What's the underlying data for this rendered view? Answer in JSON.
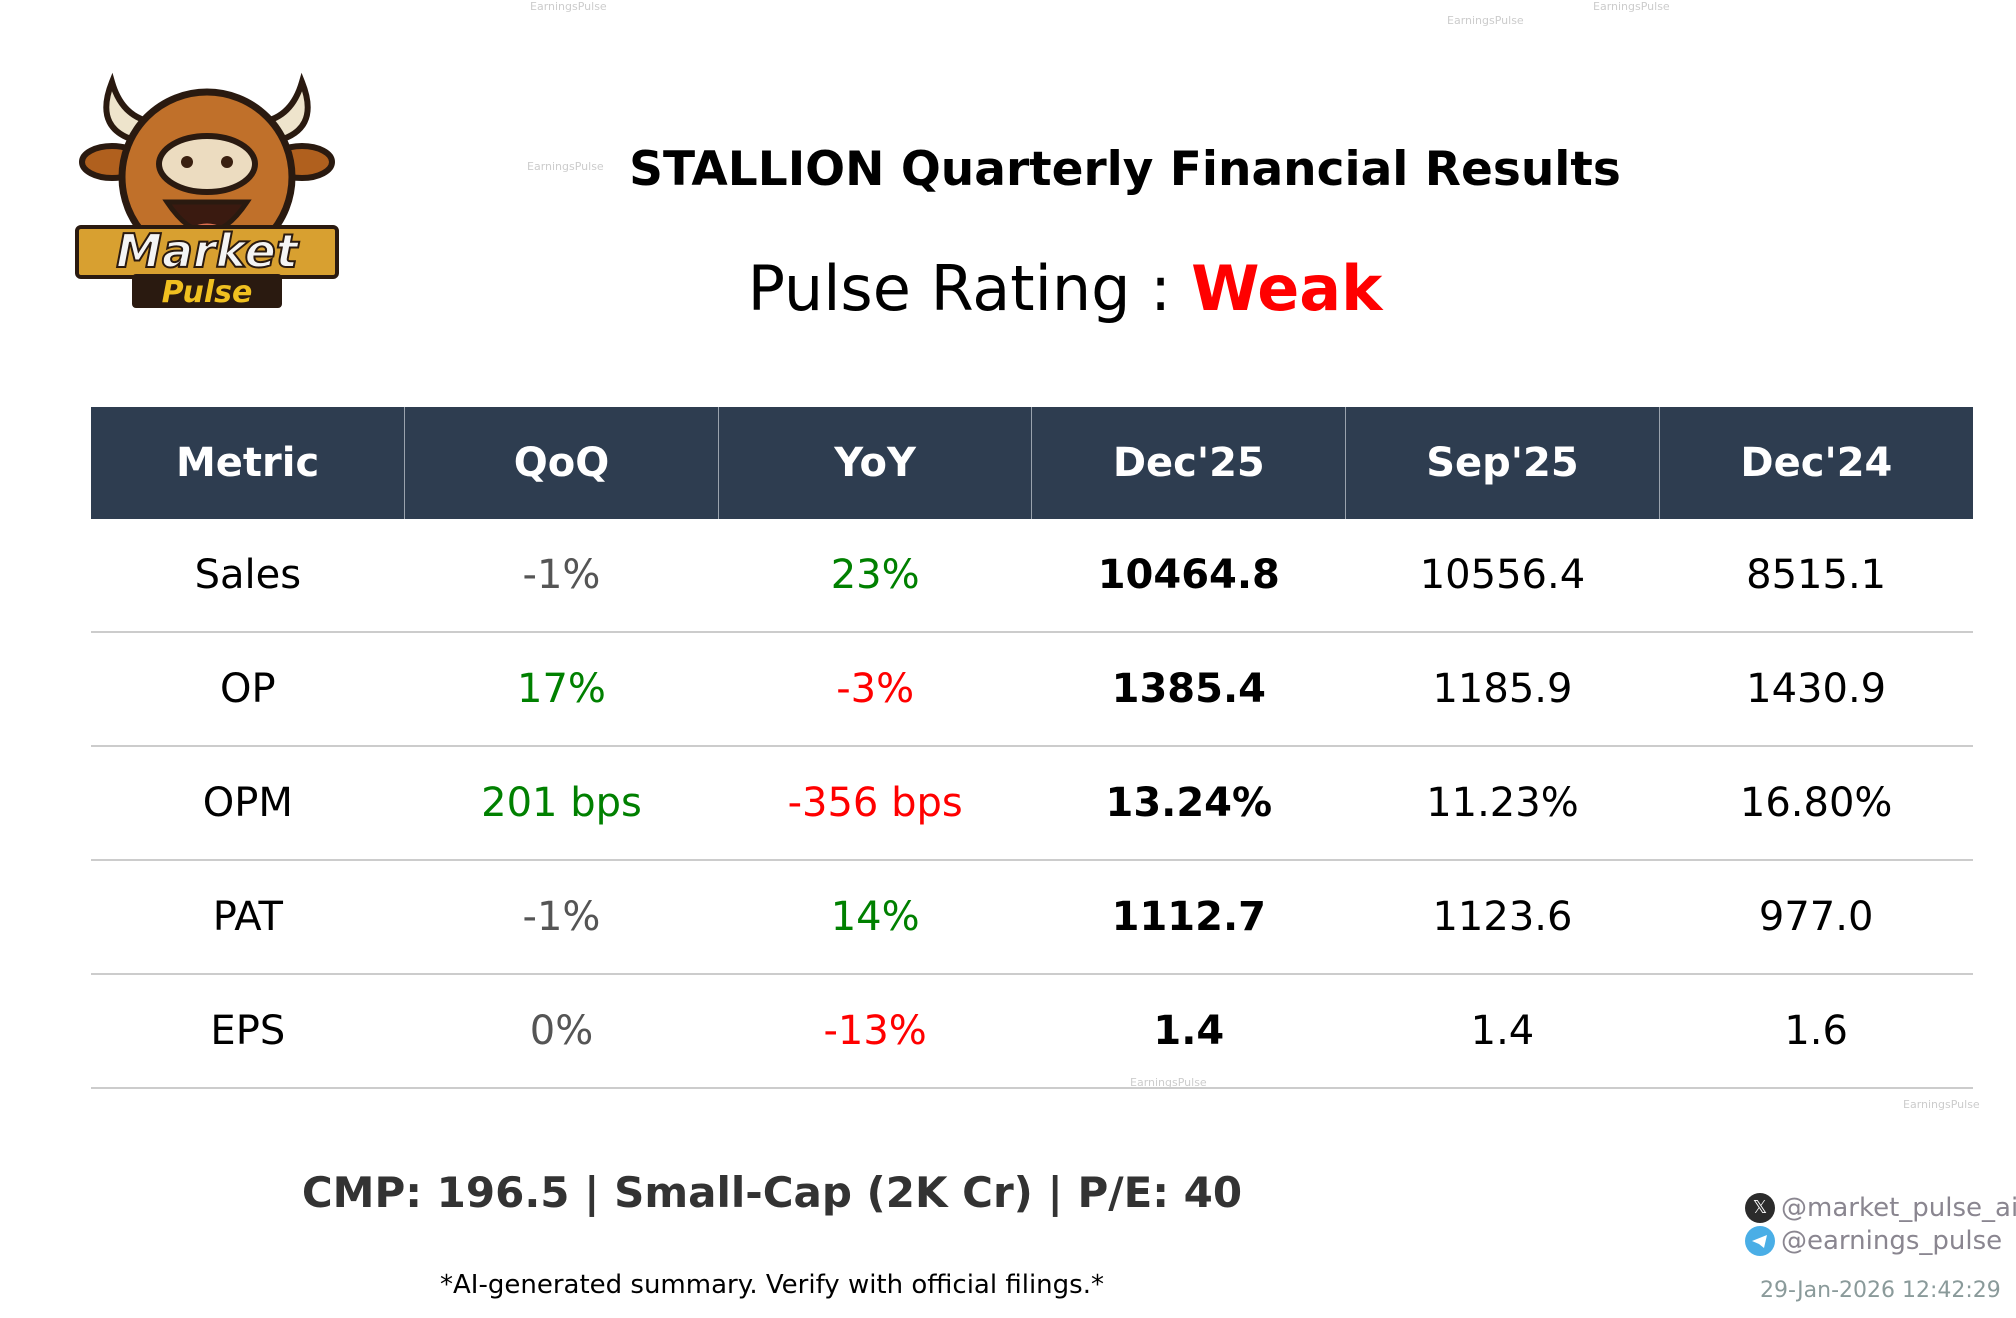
{
  "watermark": "EarningsPulse",
  "logo": {
    "text_top": "Market",
    "text_bottom": "Pulse"
  },
  "title": "STALLION Quarterly Financial Results",
  "rating": {
    "label": "Pulse Rating :",
    "value": "Weak",
    "color": "#ff0000"
  },
  "table": {
    "headers": [
      "Metric",
      "QoQ",
      "YoY",
      "Dec'25",
      "Sep'25",
      "Dec'24"
    ],
    "rows": [
      {
        "metric": "Sales",
        "qoq": "-1%",
        "qoq_tone": "gray",
        "yoy": "23%",
        "yoy_tone": "green",
        "c1": "10464.8",
        "c2": "10556.4",
        "c3": "8515.1"
      },
      {
        "metric": "OP",
        "qoq": "17%",
        "qoq_tone": "green",
        "yoy": "-3%",
        "yoy_tone": "red",
        "c1": "1385.4",
        "c2": "1185.9",
        "c3": "1430.9"
      },
      {
        "metric": "OPM",
        "qoq": "201 bps",
        "qoq_tone": "green",
        "yoy": "-356 bps",
        "yoy_tone": "red",
        "c1": "13.24%",
        "c2": "11.23%",
        "c3": "16.80%"
      },
      {
        "metric": "PAT",
        "qoq": "-1%",
        "qoq_tone": "gray",
        "yoy": "14%",
        "yoy_tone": "green",
        "c1": "1112.7",
        "c2": "1123.6",
        "c3": "977.0"
      },
      {
        "metric": "EPS",
        "qoq": "0%",
        "qoq_tone": "gray",
        "yoy": "-13%",
        "yoy_tone": "red",
        "c1": "1.4",
        "c2": "1.4",
        "c3": "1.6"
      }
    ]
  },
  "footer": {
    "cmp": "CMP: 196.5 | Small-Cap (2K Cr) | P/E: 40",
    "disclaimer": "*AI-generated summary. Verify with official filings.*",
    "x_handle": "@market_pulse_ai",
    "telegram_handle": "@earnings_pulse",
    "timestamp": "29-Jan-2026 12:42:29"
  },
  "colors": {
    "header_bg": "#2e3d50",
    "positive": "#008000",
    "negative": "#ff0000",
    "neutral": "#555555"
  }
}
